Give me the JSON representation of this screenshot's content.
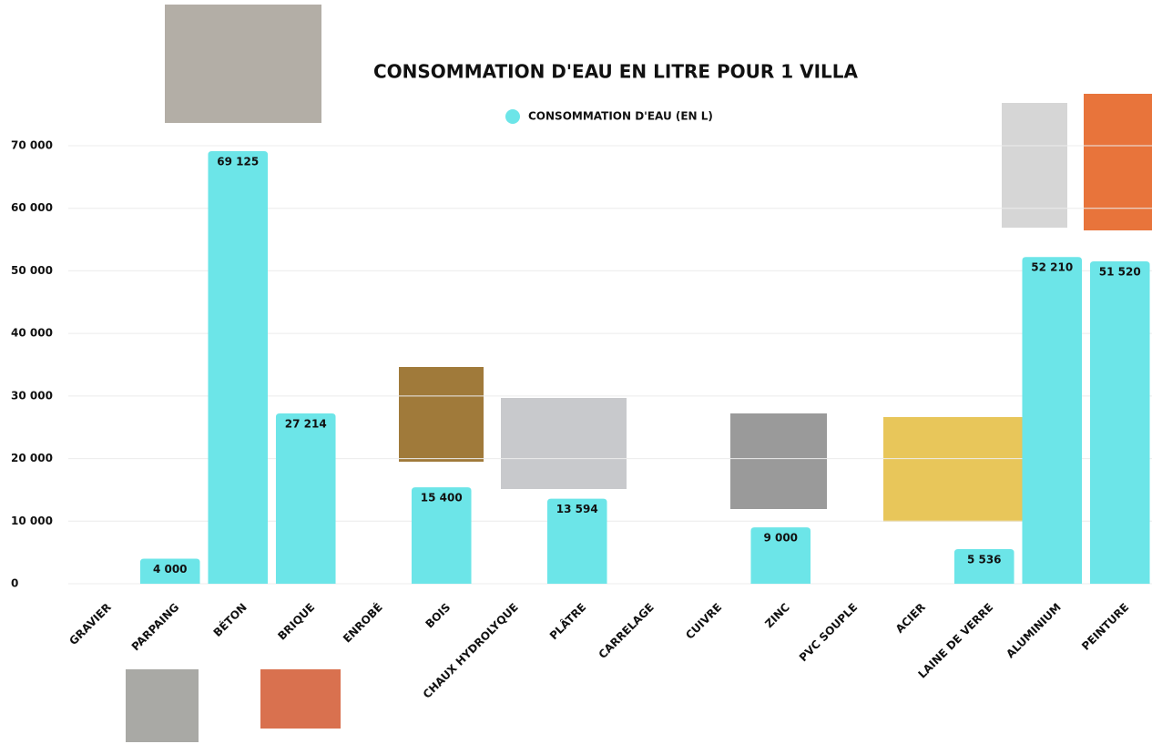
{
  "chart_data": {
    "type": "bar",
    "title": "CONSOMMATION D'EAU EN LITRE POUR 1 VILLA",
    "categories": [
      "GRAVIER",
      "PARPAING",
      "BÉTON",
      "BRIQUE",
      "ENROBÉ",
      "BOIS",
      "CHAUX HYDROLYQUE",
      "PLÂTRE",
      "CARRELAGE",
      "CUIVRE",
      "ZINC",
      "PVC SOUPLE",
      "ACIER",
      "LAINE DE VERRE",
      "ALUMINIUM",
      "PEINTURE"
    ],
    "series": [
      {
        "name": "CONSOMMATION D'EAU (EN L)",
        "color": "#6ce5e8",
        "values": [
          null,
          4000,
          69125,
          27214,
          null,
          15400,
          null,
          13594,
          null,
          null,
          9000,
          null,
          null,
          5536,
          52210,
          51520
        ],
        "value_labels": [
          null,
          "4 000",
          "69 125",
          "27 214",
          null,
          "15 400",
          null,
          "13 594",
          null,
          null,
          "9 000",
          null,
          null,
          "5 536",
          "52 210",
          "51 520"
        ]
      }
    ],
    "ylim": [
      0,
      70000
    ],
    "yticks": [
      0,
      {
        "value": 10000,
        "label": "10 000"
      },
      {
        "value": 20000,
        "label": "20 000"
      },
      {
        "value": 30000,
        "label": "30 000"
      },
      {
        "value": 40000,
        "label": "40 000"
      },
      {
        "value": 50000,
        "label": "50 000"
      },
      {
        "value": 60000,
        "label": "60 000"
      },
      {
        "value": 70000,
        "label": "70 000"
      }
    ],
    "grid": true,
    "legend": "top"
  }
}
